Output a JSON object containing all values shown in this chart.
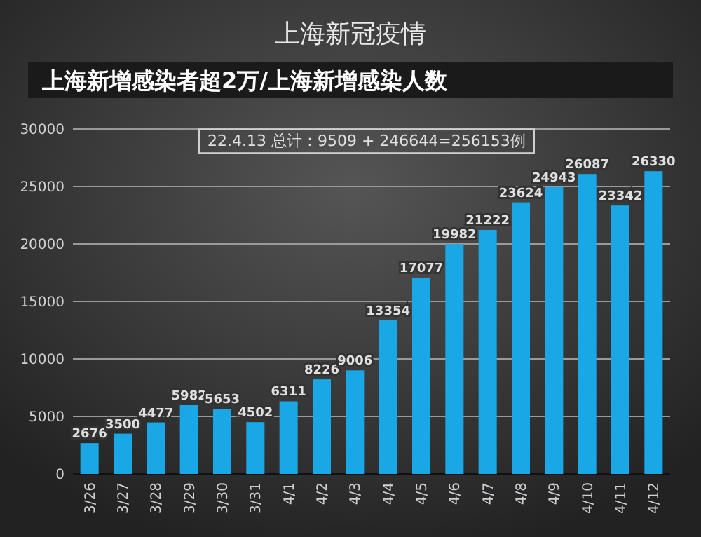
{
  "chart_data": {
    "type": "bar",
    "title": "上海新冠疫情",
    "subtitle": "上海新增感染者超2万/上海新增感染人数",
    "categories": [
      "3/26",
      "3/27",
      "3/28",
      "3/29",
      "3/30",
      "3/31",
      "4/1",
      "4/2",
      "4/3",
      "4/4",
      "4/5",
      "4/6",
      "4/7",
      "4/8",
      "4/9",
      "4/10",
      "4/11",
      "4/12"
    ],
    "values": [
      2676,
      3500,
      4477,
      5982,
      5653,
      4502,
      6311,
      8226,
      9006,
      13354,
      17077,
      19982,
      21222,
      23624,
      24943,
      26087,
      23342,
      26330
    ],
    "color": "#1aa7e6",
    "ylim": [
      0,
      30000
    ],
    "yticks": [
      0,
      5000,
      10000,
      15000,
      20000,
      25000,
      30000
    ],
    "grid": "y",
    "data_labels": true,
    "annotations": [
      "22.4.13 总计：9509 + 246644=256153例"
    ]
  }
}
